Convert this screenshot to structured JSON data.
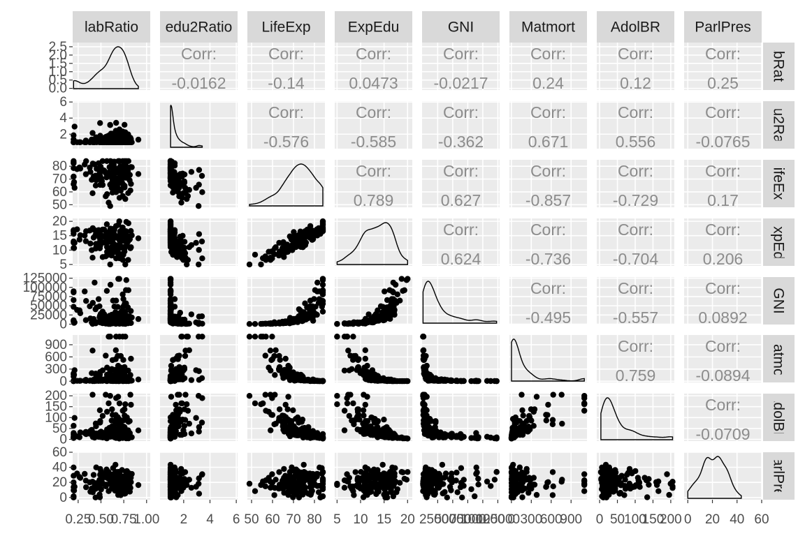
{
  "chart_data": {
    "type": "scatter",
    "subtype": "scatterplot-matrix",
    "variables": [
      "labRatio",
      "edu2Ratio",
      "LifeExp",
      "ExpEdu",
      "GNI",
      "Matmort",
      "AdolBR",
      "ParlPres"
    ],
    "lower_panels": "scatter",
    "diagonal_panels": "density",
    "upper_panels": "correlation",
    "grid": true,
    "legend": "none",
    "corr_title": "Corr:",
    "correlations": [
      [
        null,
        -0.0162,
        -0.14,
        0.0473,
        -0.0217,
        0.24,
        0.12,
        0.25
      ],
      [
        null,
        null,
        -0.576,
        -0.585,
        -0.362,
        0.671,
        0.556,
        -0.0765
      ],
      [
        null,
        null,
        null,
        0.789,
        0.627,
        -0.857,
        -0.729,
        0.17
      ],
      [
        null,
        null,
        null,
        null,
        0.624,
        -0.736,
        -0.704,
        0.206
      ],
      [
        null,
        null,
        null,
        null,
        null,
        -0.495,
        -0.557,
        0.0892
      ],
      [
        null,
        null,
        null,
        null,
        null,
        null,
        0.759,
        -0.0894
      ],
      [
        null,
        null,
        null,
        null,
        null,
        null,
        null,
        -0.0709
      ],
      [
        null,
        null,
        null,
        null,
        null,
        null,
        null,
        null
      ]
    ],
    "corr_labels": [
      [
        "",
        "-0.0162",
        "-0.14",
        "0.0473",
        "-0.0217",
        "0.24",
        "0.12",
        "0.25"
      ],
      [
        "",
        "",
        "-0.576",
        "-0.585",
        "-0.362",
        "0.671",
        "0.556",
        "-0.0765"
      ],
      [
        "",
        "",
        "",
        "0.789",
        "0.627",
        "-0.857",
        "-0.729",
        "0.17"
      ],
      [
        "",
        "",
        "",
        "",
        "0.624",
        "-0.736",
        "-0.704",
        "0.206"
      ],
      [
        "",
        "",
        "",
        "",
        "",
        "-0.495",
        "-0.557",
        "0.0892"
      ],
      [
        "",
        "",
        "",
        "",
        "",
        "",
        "0.759",
        "-0.0894"
      ],
      [
        "",
        "",
        "",
        "",
        "",
        "",
        "",
        "-0.0709"
      ],
      [
        "",
        "",
        "",
        "",
        "",
        "",
        "",
        ""
      ]
    ],
    "x_ranges": [
      [
        0.19,
        1.04
      ],
      [
        0.2,
        6.1
      ],
      [
        48,
        85
      ],
      [
        4.5,
        21
      ],
      [
        -1000,
        128000
      ],
      [
        -30,
        1140
      ],
      [
        -8,
        210
      ],
      [
        -3,
        60
      ]
    ],
    "x_ticks": [
      [
        0.25,
        0.5,
        0.75,
        1.0
      ],
      [
        2,
        4,
        6
      ],
      [
        50,
        60,
        70,
        80
      ],
      [
        5,
        10,
        15,
        20
      ],
      [
        25000,
        50000,
        75000,
        100000,
        125000
      ],
      [
        0,
        300,
        600,
        900
      ],
      [
        0,
        50,
        100,
        150,
        200
      ],
      [
        0,
        20,
        40,
        60
      ]
    ],
    "x_tick_labels": [
      [
        "0.25",
        "0.50",
        "0.75",
        "1.00"
      ],
      [
        "2",
        "4",
        "6"
      ],
      [
        "50",
        "60",
        "70",
        "80"
      ],
      [
        "5",
        "10",
        "15",
        "20"
      ],
      [
        "25000",
        "50000",
        "75000",
        "100000",
        "125000"
      ],
      [
        "0",
        "300",
        "600",
        "900"
      ],
      [
        "0",
        "50",
        "100",
        "150",
        "200"
      ],
      [
        "0",
        "20",
        "40",
        "60"
      ]
    ],
    "y_ranges": [
      [
        -0.1,
        2.75
      ],
      [
        0.2,
        6.1
      ],
      [
        48,
        85
      ],
      [
        4.5,
        21
      ],
      [
        -1000,
        128000
      ],
      [
        -30,
        1140
      ],
      [
        -8,
        210
      ],
      [
        -3,
        60
      ]
    ],
    "y_ticks": [
      [
        0.0,
        0.5,
        1.0,
        1.5,
        2.0,
        2.5
      ],
      [
        2,
        4,
        6
      ],
      [
        50,
        60,
        70,
        80
      ],
      [
        5,
        10,
        15,
        20
      ],
      [
        0,
        25000,
        50000,
        75000,
        100000,
        125000
      ],
      [
        0,
        300,
        600,
        900
      ],
      [
        0,
        50,
        100,
        150,
        200
      ],
      [
        0,
        20,
        40,
        60
      ]
    ],
    "y_tick_labels": [
      [
        "0.0",
        "0.5",
        "1.0",
        "1.5",
        "2.0",
        "2.5"
      ],
      [
        "2",
        "4",
        "6"
      ],
      [
        "50",
        "60",
        "70",
        "80"
      ],
      [
        "5",
        "10",
        "15",
        "20"
      ],
      [
        "0",
        "25000",
        "50000",
        "75000",
        "100000",
        "125000"
      ],
      [
        "0",
        "300",
        "600",
        "900"
      ],
      [
        "0",
        "50",
        "100",
        "150",
        "200"
      ],
      [
        "0",
        "20",
        "40",
        "60"
      ]
    ],
    "n_points": 155,
    "approx_variable_summaries": {
      "labRatio": {
        "min": 0.2,
        "max": 1.0,
        "center": 0.8
      },
      "edu2Ratio": {
        "min": 0.9,
        "max": 5.9,
        "center": 1.0
      },
      "LifeExp": {
        "min": 49,
        "max": 84,
        "center": 74
      },
      "ExpEdu": {
        "min": 5,
        "max": 20,
        "center": 13.5
      },
      "GNI": {
        "min": 600,
        "max": 123000,
        "center": 12000
      },
      "Matmort": {
        "min": 1,
        "max": 1100,
        "center": 49
      },
      "AdolBR": {
        "min": 1,
        "max": 205,
        "center": 34
      },
      "ParlPres": {
        "min": 0,
        "max": 58,
        "center": 19
      }
    }
  }
}
